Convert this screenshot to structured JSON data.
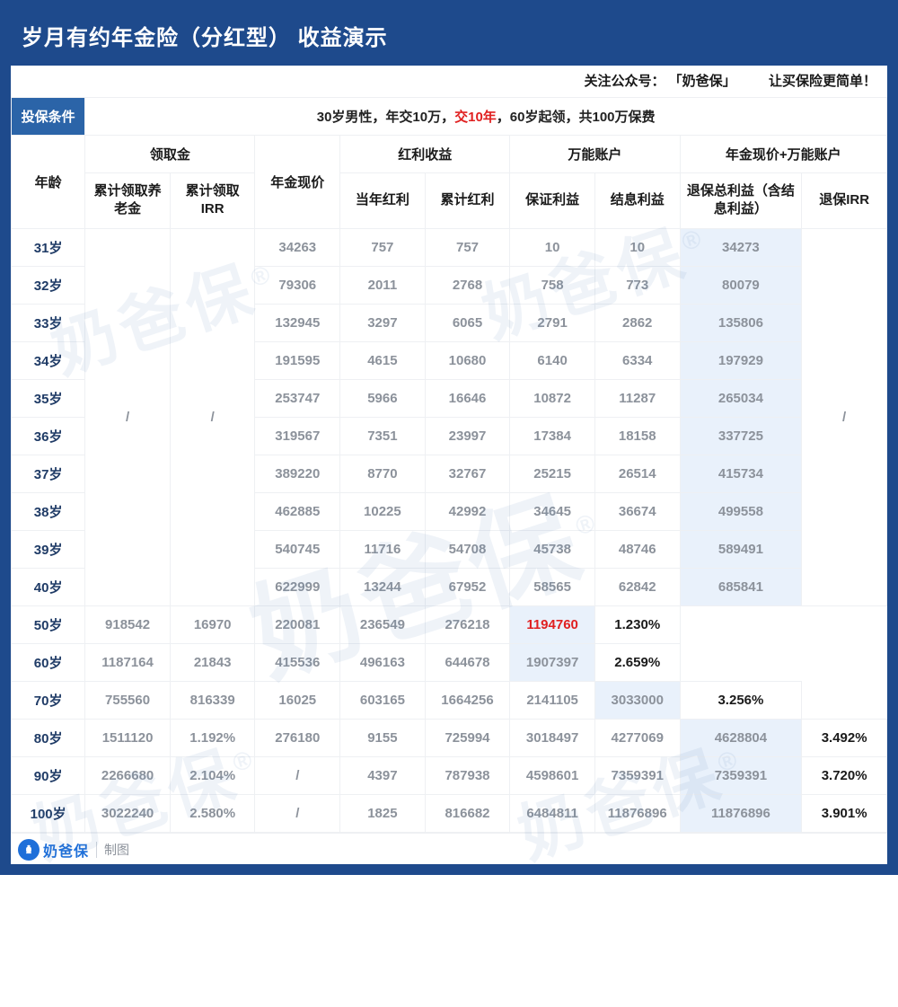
{
  "meta": {
    "background_color": "#1e4a8c",
    "title_color": "#ffffff",
    "grid_color": "#eef0f3",
    "muted_text_color": "#8c929b",
    "emphasis_text_color": "#1a1a1a",
    "age_text_color": "#1f3b66",
    "highlight_bg": "#e9f1fb",
    "red": "#e02020",
    "font_family": "PingFang SC / Microsoft YaHei"
  },
  "title": "岁月有约年金险（分红型） 收益演示",
  "subbar": {
    "prefix": "关注公众号：",
    "brand": "「奶爸保」",
    "slogan": "让买保险更简单！"
  },
  "policy": {
    "label": "投保条件",
    "text_parts": {
      "p1": "30岁男性，年交10万，",
      "red": "交10年",
      "p2": "，60岁起领，共100万保费"
    }
  },
  "columns": {
    "age": "年龄",
    "group_withdraw": "领取金",
    "withdraw_cum": "累计领取养老金",
    "withdraw_irr": "累计领取IRR",
    "annuity_cv": "年金现价",
    "group_dividend": "红利收益",
    "div_year": "当年红利",
    "div_cum": "累计红利",
    "group_universal": "万能账户",
    "u_guaranteed": "保证利益",
    "u_credited": "结息利益",
    "group_total": "年金现价+万能账户",
    "surrender_total": "退保总利益（含结息利益）",
    "surrender_irr": "退保IRR"
  },
  "slash": "/",
  "rows_top": [
    {
      "age": "31岁",
      "cv": "34263",
      "dy": "757",
      "dc": "757",
      "ug": "10",
      "uc": "10",
      "st": "34273"
    },
    {
      "age": "32岁",
      "cv": "79306",
      "dy": "2011",
      "dc": "2768",
      "ug": "758",
      "uc": "773",
      "st": "80079"
    },
    {
      "age": "33岁",
      "cv": "132945",
      "dy": "3297",
      "dc": "6065",
      "ug": "2791",
      "uc": "2862",
      "st": "135806"
    },
    {
      "age": "34岁",
      "cv": "191595",
      "dy": "4615",
      "dc": "10680",
      "ug": "6140",
      "uc": "6334",
      "st": "197929"
    },
    {
      "age": "35岁",
      "cv": "253747",
      "dy": "5966",
      "dc": "16646",
      "ug": "10872",
      "uc": "11287",
      "st": "265034"
    },
    {
      "age": "36岁",
      "cv": "319567",
      "dy": "7351",
      "dc": "23997",
      "ug": "17384",
      "uc": "18158",
      "st": "337725"
    },
    {
      "age": "37岁",
      "cv": "389220",
      "dy": "8770",
      "dc": "32767",
      "ug": "25215",
      "uc": "26514",
      "st": "415734"
    },
    {
      "age": "38岁",
      "cv": "462885",
      "dy": "10225",
      "dc": "42992",
      "ug": "34645",
      "uc": "36674",
      "st": "499558"
    },
    {
      "age": "39岁",
      "cv": "540745",
      "dy": "11716",
      "dc": "54708",
      "ug": "45738",
      "uc": "48746",
      "st": "589491"
    },
    {
      "age": "40岁",
      "cv": "622999",
      "dy": "13244",
      "dc": "67952",
      "ug": "58565",
      "uc": "62842",
      "st": "685841"
    }
  ],
  "rows_bottom": [
    {
      "age": "50岁",
      "wc": "",
      "wi": "",
      "cv": "918542",
      "dy": "16970",
      "dc": "220081",
      "ug": "236549",
      "uc": "276218",
      "st": "1194760",
      "st_red": true,
      "ir": "1.230%",
      "ir_dark": true
    },
    {
      "age": "60岁",
      "wc": "",
      "wi": "",
      "cv": "1187164",
      "dy": "21843",
      "dc": "415536",
      "ug": "496163",
      "uc": "644678",
      "st": "1907397",
      "ir": "2.659%",
      "ir_dark": true
    },
    {
      "age": "70岁",
      "wc": "755560",
      "wi": "",
      "cv": "816339",
      "dy": "16025",
      "dc": "603165",
      "ug": "1664256",
      "uc": "2141105",
      "st": "3033000",
      "ir": "3.256%",
      "ir_dark": true
    },
    {
      "age": "80岁",
      "wc": "1511120",
      "wi": "1.192%",
      "cv": "276180",
      "dy": "9155",
      "dc": "725994",
      "ug": "3018497",
      "uc": "4277069",
      "st": "4628804",
      "ir": "3.492%",
      "ir_dark": true
    },
    {
      "age": "90岁",
      "wc": "2266680",
      "wi": "2.104%",
      "cv": "/",
      "dy": "4397",
      "dc": "787938",
      "ug": "4598601",
      "uc": "7359391",
      "st": "7359391",
      "ir": "3.720%",
      "ir_dark": true
    },
    {
      "age": "100岁",
      "wc": "3022240",
      "wi": "2.580%",
      "cv": "/",
      "dy": "1825",
      "dc": "816682",
      "ug": "6484811",
      "uc": "11876896",
      "st": "11876896",
      "ir": "3.901%",
      "ir_dark": true
    }
  ],
  "footer": {
    "brand": "奶爸保",
    "credit": "制图"
  },
  "watermark": "奶爸保"
}
